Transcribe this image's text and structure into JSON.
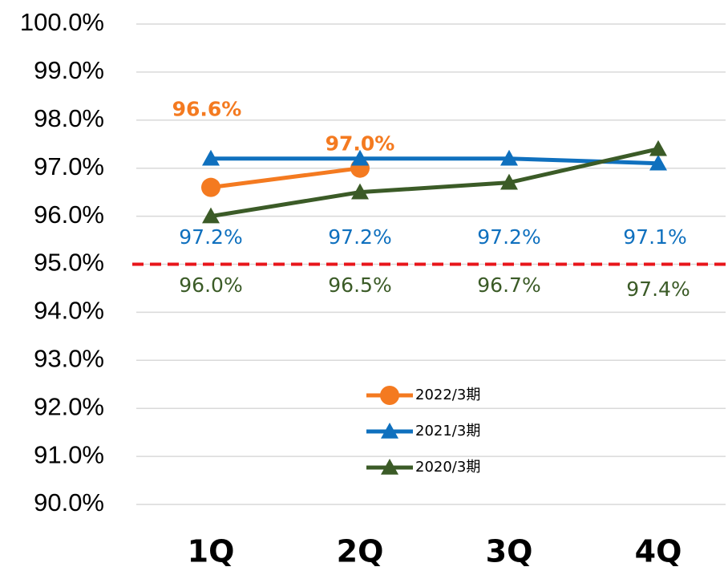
{
  "chart_data": {
    "type": "line",
    "categories": [
      "1Q",
      "2Q",
      "3Q",
      "4Q"
    ],
    "series": [
      {
        "name": "2022/3期",
        "color": "#f47a20",
        "marker": "circle",
        "values": [
          96.6,
          97.0,
          null,
          null
        ],
        "value_labels": [
          "96.6%",
          "97.0%",
          null,
          null
        ]
      },
      {
        "name": "2021/3期",
        "color": "#0f70be",
        "marker": "triangle",
        "values": [
          97.2,
          97.2,
          97.2,
          97.1
        ],
        "value_labels": [
          "97.2%",
          "97.2%",
          "97.2%",
          "97.1%"
        ]
      },
      {
        "name": "2020/3期",
        "color": "#3b5b27",
        "marker": "triangle",
        "values": [
          96.0,
          96.5,
          96.7,
          97.4
        ],
        "value_labels": [
          "96.0%",
          "96.5%",
          "96.7%",
          "97.4%"
        ]
      }
    ],
    "reference_line": {
      "value": 95,
      "color": "#e8161b"
    },
    "ylim": [
      90,
      100
    ],
    "yticks": [
      {
        "value": 90,
        "label": "90.0%"
      },
      {
        "value": 91,
        "label": "91.0%"
      },
      {
        "value": 92,
        "label": "92.0%"
      },
      {
        "value": 93,
        "label": "93.0%"
      },
      {
        "value": 94,
        "label": "94.0%"
      },
      {
        "value": 95,
        "label": "95.0%"
      },
      {
        "value": 96,
        "label": "96.0%"
      },
      {
        "value": 97,
        "label": "97.0%"
      },
      {
        "value": 98,
        "label": "98.0%"
      },
      {
        "value": 99,
        "label": "99.0%"
      },
      {
        "value": 100,
        "label": "100.0%"
      }
    ],
    "grid": true
  }
}
